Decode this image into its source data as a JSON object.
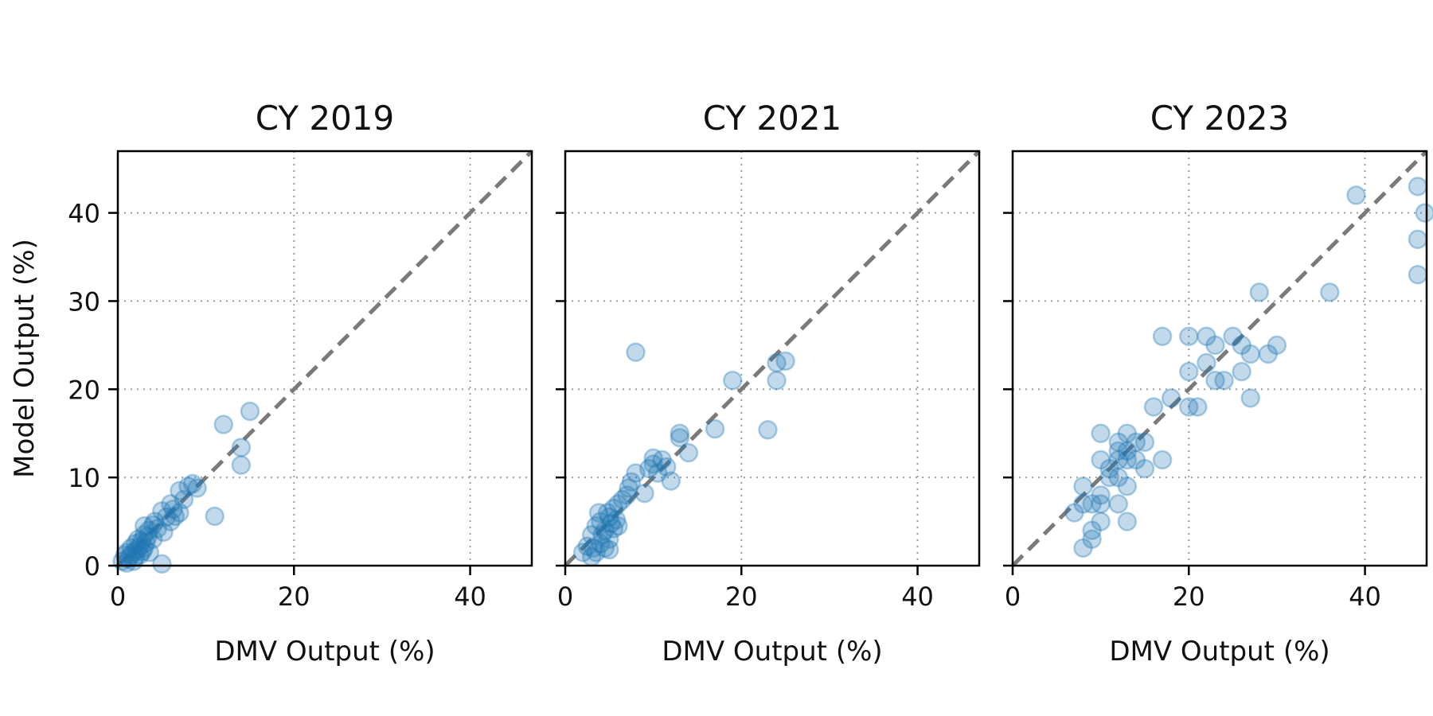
{
  "chart_data": [
    {
      "type": "scatter",
      "title": "CY 2019",
      "xlabel": "DMV Output (%)",
      "ylabel": "Model Output (%)",
      "xlim": [
        0,
        47
      ],
      "ylim": [
        0,
        47
      ],
      "xticks": [
        0,
        20,
        40
      ],
      "yticks": [
        0,
        10,
        20,
        30,
        40
      ],
      "grid": true,
      "reference_line": "y = x",
      "marker_color": "#1f77b4",
      "ref_color": "#7a7a7a",
      "points": [
        [
          0.5,
          0.5
        ],
        [
          0.8,
          1.2
        ],
        [
          1.0,
          0.3
        ],
        [
          1.0,
          1.5
        ],
        [
          1.2,
          0.8
        ],
        [
          1.5,
          1.2
        ],
        [
          1.5,
          2.0
        ],
        [
          1.8,
          0.5
        ],
        [
          1.8,
          1.5
        ],
        [
          2.0,
          1.0
        ],
        [
          2.0,
          2.5
        ],
        [
          2.2,
          1.8
        ],
        [
          2.3,
          3.0
        ],
        [
          2.5,
          1.2
        ],
        [
          2.5,
          2.2
        ],
        [
          2.7,
          2.8
        ],
        [
          2.8,
          1.6
        ],
        [
          3.0,
          3.5
        ],
        [
          3.0,
          2.0
        ],
        [
          3.0,
          4.5
        ],
        [
          3.2,
          2.6
        ],
        [
          3.4,
          3.3
        ],
        [
          3.5,
          4.0
        ],
        [
          3.6,
          1.5
        ],
        [
          4.0,
          4.6
        ],
        [
          4.0,
          3.0
        ],
        [
          4.2,
          5.0
        ],
        [
          4.5,
          4.2
        ],
        [
          5.0,
          6.2
        ],
        [
          5.0,
          0.2
        ],
        [
          5.2,
          3.8
        ],
        [
          5.5,
          5.5
        ],
        [
          6.0,
          5.0
        ],
        [
          6.0,
          7.0
        ],
        [
          6.3,
          6.4
        ],
        [
          6.5,
          5.6
        ],
        [
          7.0,
          6.0
        ],
        [
          7.0,
          8.5
        ],
        [
          7.5,
          7.5
        ],
        [
          8.0,
          9.0
        ],
        [
          8.5,
          9.3
        ],
        [
          9.0,
          8.8
        ],
        [
          11.0,
          5.6
        ],
        [
          12.0,
          16.0
        ],
        [
          14.0,
          13.4
        ],
        [
          14.0,
          11.4
        ],
        [
          15.0,
          17.5
        ]
      ]
    },
    {
      "type": "scatter",
      "title": "CY 2021",
      "xlabel": "DMV Output (%)",
      "xlim": [
        0,
        47
      ],
      "ylim": [
        0,
        47
      ],
      "xticks": [
        0,
        20,
        40
      ],
      "yticks": [
        0,
        10,
        20,
        30,
        40
      ],
      "grid": true,
      "reference_line": "y = x",
      "marker_color": "#1f77b4",
      "ref_color": "#7a7a7a",
      "points": [
        [
          2.0,
          1.5
        ],
        [
          2.5,
          2.2
        ],
        [
          3.0,
          1.0
        ],
        [
          3.0,
          3.5
        ],
        [
          3.2,
          2.0
        ],
        [
          3.5,
          4.5
        ],
        [
          3.5,
          1.5
        ],
        [
          3.8,
          6.0
        ],
        [
          4.0,
          2.5
        ],
        [
          4.0,
          5.0
        ],
        [
          4.2,
          3.5
        ],
        [
          4.5,
          2.0
        ],
        [
          4.5,
          4.0
        ],
        [
          4.8,
          6.0
        ],
        [
          5.0,
          1.8
        ],
        [
          5.0,
          5.5
        ],
        [
          5.0,
          3.0
        ],
        [
          5.2,
          4.8
        ],
        [
          5.5,
          6.5
        ],
        [
          5.5,
          4.2
        ],
        [
          5.8,
          5.2
        ],
        [
          6.0,
          7.0
        ],
        [
          6.0,
          4.5
        ],
        [
          6.5,
          7.5
        ],
        [
          7.0,
          8.0
        ],
        [
          7.2,
          8.8
        ],
        [
          7.5,
          9.5
        ],
        [
          8.0,
          10.5
        ],
        [
          8.0,
          24.2
        ],
        [
          9.0,
          8.2
        ],
        [
          9.5,
          11.0
        ],
        [
          10.0,
          11.5
        ],
        [
          10.0,
          12.2
        ],
        [
          10.5,
          10.5
        ],
        [
          11.0,
          12.0
        ],
        [
          11.5,
          11.2
        ],
        [
          12.0,
          9.6
        ],
        [
          13.0,
          14.5
        ],
        [
          13.0,
          15.0
        ],
        [
          14.0,
          12.8
        ],
        [
          17.0,
          15.5
        ],
        [
          19.0,
          21.0
        ],
        [
          23.0,
          15.4
        ],
        [
          24.0,
          23.0
        ],
        [
          24.0,
          21.0
        ],
        [
          25.0,
          23.2
        ]
      ]
    },
    {
      "type": "scatter",
      "title": "CY 2023",
      "xlabel": "DMV Output (%)",
      "xlim": [
        0,
        47
      ],
      "ylim": [
        0,
        47
      ],
      "xticks": [
        0,
        20,
        40
      ],
      "yticks": [
        0,
        10,
        20,
        30,
        40
      ],
      "grid": true,
      "reference_line": "y = x",
      "marker_color": "#1f77b4",
      "ref_color": "#7a7a7a",
      "points": [
        [
          7.0,
          6.0
        ],
        [
          8.0,
          2.0
        ],
        [
          8.0,
          9.0
        ],
        [
          8.0,
          7.0
        ],
        [
          9.0,
          3.0
        ],
        [
          9.0,
          7.0
        ],
        [
          9.0,
          4.0
        ],
        [
          10.0,
          5.0
        ],
        [
          10.0,
          15.0
        ],
        [
          10.0,
          12.0
        ],
        [
          10.0,
          8.0
        ],
        [
          10.0,
          7.0
        ],
        [
          11.0,
          10.0
        ],
        [
          11.0,
          11.0
        ],
        [
          12.0,
          7.0
        ],
        [
          12.0,
          13.0
        ],
        [
          12.0,
          12.0
        ],
        [
          12.0,
          14.0
        ],
        [
          12.0,
          10.0
        ],
        [
          13.0,
          15.0
        ],
        [
          13.0,
          9.0
        ],
        [
          13.0,
          5.0
        ],
        [
          13.0,
          12.0
        ],
        [
          13.0,
          13.0
        ],
        [
          14.0,
          14.0
        ],
        [
          14.0,
          12.0
        ],
        [
          15.0,
          11.0
        ],
        [
          15.0,
          14.0
        ],
        [
          16.0,
          18.0
        ],
        [
          17.0,
          26.0
        ],
        [
          17.0,
          12.0
        ],
        [
          18.0,
          19.0
        ],
        [
          20.0,
          26.0
        ],
        [
          20.0,
          22.0
        ],
        [
          20.0,
          18.0
        ],
        [
          21.0,
          18.0
        ],
        [
          22.0,
          26.0
        ],
        [
          22.0,
          23.0
        ],
        [
          23.0,
          25.0
        ],
        [
          23.0,
          21.0
        ],
        [
          24.0,
          21.0
        ],
        [
          25.0,
          26.0
        ],
        [
          26.0,
          25.0
        ],
        [
          26.0,
          22.0
        ],
        [
          27.0,
          24.0
        ],
        [
          27.0,
          19.0
        ],
        [
          28.0,
          31.0
        ],
        [
          29.0,
          24.0
        ],
        [
          30.0,
          25.0
        ],
        [
          36.0,
          31.0
        ],
        [
          39.0,
          42.0
        ],
        [
          46.0,
          43.0
        ],
        [
          46.0,
          37.0
        ],
        [
          46.0,
          33.0
        ],
        [
          46.8,
          40.0
        ]
      ]
    }
  ]
}
